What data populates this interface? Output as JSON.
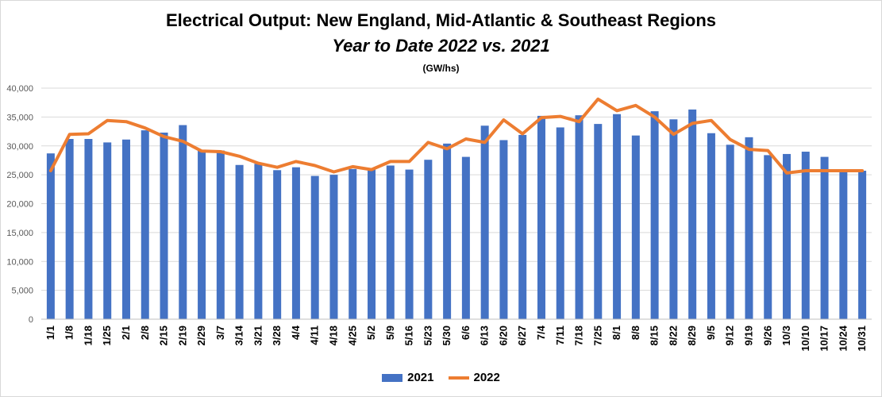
{
  "chart_data": {
    "type": "bar+line",
    "title": "Electrical Output:  New England, Mid-Atlantic & Southeast Regions",
    "subtitle": "Year to Date 2022 vs. 2021",
    "units": "(GW/hs)",
    "ylim": [
      0,
      40000
    ],
    "ytick_labels": [
      "0",
      "5,000",
      "10,000",
      "15,000",
      "20,000",
      "25,000",
      "30,000",
      "35,000",
      "40,000"
    ],
    "grid": true,
    "legend_position": "bottom",
    "categories": [
      "1/1",
      "1/8",
      "1/18",
      "1/25",
      "2/1",
      "2/8",
      "2/15",
      "2/19",
      "2/29",
      "3/7",
      "3/14",
      "3/21",
      "3/28",
      "4/4",
      "4/11",
      "4/18",
      "4/25",
      "5/2",
      "5/9",
      "5/16",
      "5/23",
      "5/30",
      "6/6",
      "6/13",
      "6/20",
      "6/27",
      "7/4",
      "7/11",
      "7/18",
      "7/25",
      "8/1",
      "8/8",
      "8/15",
      "8/22",
      "8/29",
      "9/5",
      "9/12",
      "9/19",
      "9/26",
      "10/3",
      "10/10",
      "10/17",
      "10/24",
      "10/31"
    ],
    "series": [
      {
        "name": "2021",
        "kind": "bar",
        "color": "#4472c4",
        "values": [
          28700,
          31200,
          31200,
          30600,
          31100,
          32700,
          32300,
          33600,
          29200,
          29200,
          26700,
          26900,
          25800,
          26300,
          24800,
          25000,
          26000,
          26000,
          26600,
          25900,
          27600,
          30400,
          28100,
          33500,
          31000,
          31900,
          35200,
          33200,
          35300,
          33800,
          35500,
          31800,
          36000,
          34600,
          36300,
          32200,
          30200,
          31500,
          28400,
          28600,
          29000,
          28100,
          25700,
          25700
        ],
        "value_encoding": "approximate readings from bar heights"
      },
      {
        "name": "2022",
        "kind": "line",
        "color": "#ed7d31",
        "values": [
          25700,
          32000,
          32100,
          34400,
          34200,
          33100,
          31600,
          30800,
          29100,
          29000,
          28200,
          27000,
          26300,
          27300,
          26600,
          25500,
          26400,
          25900,
          27300,
          27300,
          30600,
          29500,
          31200,
          30600,
          34500,
          32100,
          34900,
          35100,
          34200,
          38100,
          36100,
          37000,
          35000,
          32000,
          33900,
          34400,
          31100,
          29400,
          29200,
          25300,
          25700,
          25700,
          25700,
          25700
        ],
        "value_encoding": "approximate readings from line positions"
      }
    ]
  }
}
